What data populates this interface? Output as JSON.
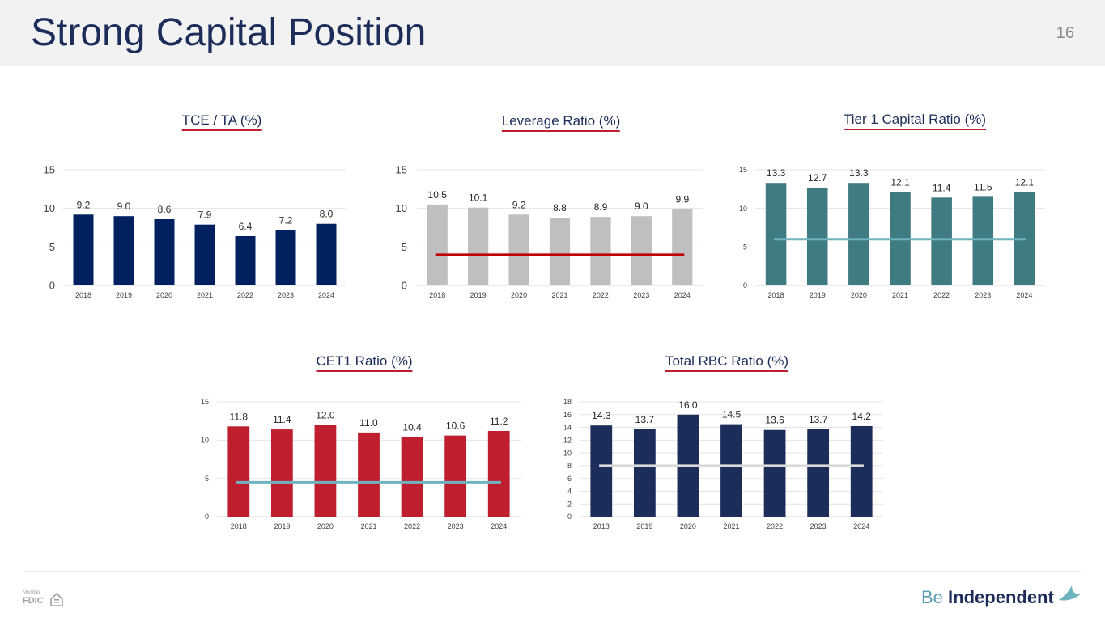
{
  "header": {
    "title": "Strong Capital Position",
    "page_number": "16"
  },
  "footer": {
    "fdic_member": "Member",
    "fdic_label": "FDIC",
    "brand_be": "Be",
    "brand_independent": "Independent"
  },
  "colors": {
    "navy": "#002060",
    "gray": "#bfbfbf",
    "teal": "#3f7b80",
    "red": "#be1e2d",
    "darknavy": "#1c2d5a",
    "line_red": "#c00000",
    "line_teal": "#6fb3be",
    "line_lightgray": "#d9d9d9"
  },
  "chart_data": [
    {
      "id": "tce",
      "type": "bar",
      "title": "TCE / TA (%)",
      "categories": [
        "2018",
        "2019",
        "2020",
        "2021",
        "2022",
        "2023",
        "2024"
      ],
      "values": [
        9.2,
        9.0,
        8.6,
        7.9,
        6.4,
        7.2,
        8.0
      ],
      "value_labels": [
        "9.2",
        "9.0",
        "8.6",
        "7.9",
        "6.4",
        "7.2",
        "8.0"
      ],
      "ylim": [
        0,
        15
      ],
      "yticks": [
        "0",
        "5",
        "10",
        "15"
      ],
      "grid": true,
      "bar_color": "#002060",
      "reference_line": null
    },
    {
      "id": "leverage",
      "type": "bar",
      "title": "Leverage Ratio (%)",
      "categories": [
        "2018",
        "2019",
        "2020",
        "2021",
        "2022",
        "2023",
        "2024"
      ],
      "values": [
        10.5,
        10.1,
        9.2,
        8.8,
        8.9,
        9.0,
        9.9
      ],
      "value_labels": [
        "10.5",
        "10.1",
        "9.2",
        "8.8",
        "8.9",
        "9.0",
        "9.9"
      ],
      "ylim": [
        0,
        15
      ],
      "yticks": [
        "0",
        "5",
        "10",
        "15"
      ],
      "grid": true,
      "bar_color": "#bfbfbf",
      "reference_line": {
        "value": 4,
        "color": "#c00000"
      }
    },
    {
      "id": "tier1",
      "type": "bar",
      "title": "Tier 1 Capital Ratio (%)",
      "categories": [
        "2018",
        "2019",
        "2020",
        "2021",
        "2022",
        "2023",
        "2024"
      ],
      "values": [
        13.3,
        12.7,
        13.3,
        12.1,
        11.4,
        11.5,
        12.1
      ],
      "value_labels": [
        "13.3",
        "12.7",
        "13.3",
        "12.1",
        "11.4",
        "11.5",
        "12.1"
      ],
      "ylim": [
        0,
        15
      ],
      "yticks": [
        "0",
        "5",
        "10",
        "15"
      ],
      "grid": true,
      "bar_color": "#3f7b80",
      "reference_line": {
        "value": 6,
        "color": "#6fb3be"
      }
    },
    {
      "id": "cet1",
      "type": "bar",
      "title": "CET1 Ratio (%)",
      "categories": [
        "2018",
        "2019",
        "2020",
        "2021",
        "2022",
        "2023",
        "2024"
      ],
      "values": [
        11.8,
        11.4,
        12.0,
        11.0,
        10.4,
        10.6,
        11.2
      ],
      "value_labels": [
        "11.8",
        "11.4",
        "12.0",
        "11.0",
        "10.4",
        "10.6",
        "11.2"
      ],
      "ylim": [
        0,
        15
      ],
      "yticks": [
        "0",
        "5",
        "10",
        "15"
      ],
      "grid": true,
      "bar_color": "#be1e2d",
      "reference_line": {
        "value": 4.5,
        "color": "#6fb3be"
      }
    },
    {
      "id": "rbc",
      "type": "bar",
      "title": "Total RBC Ratio (%)",
      "categories": [
        "2018",
        "2019",
        "2020",
        "2021",
        "2022",
        "2023",
        "2024"
      ],
      "values": [
        14.3,
        13.7,
        16.0,
        14.5,
        13.6,
        13.7,
        14.2
      ],
      "value_labels": [
        "14.3",
        "13.7",
        "16.0",
        "14.5",
        "13.6",
        "13.7",
        "14.2"
      ],
      "ylim": [
        0,
        18
      ],
      "yticks": [
        "0",
        "2",
        "4",
        "6",
        "8",
        "10",
        "12",
        "14",
        "16",
        "18"
      ],
      "grid": true,
      "bar_color": "#1c2d5a",
      "reference_line": {
        "value": 8,
        "color": "#d9d9d9"
      }
    }
  ]
}
